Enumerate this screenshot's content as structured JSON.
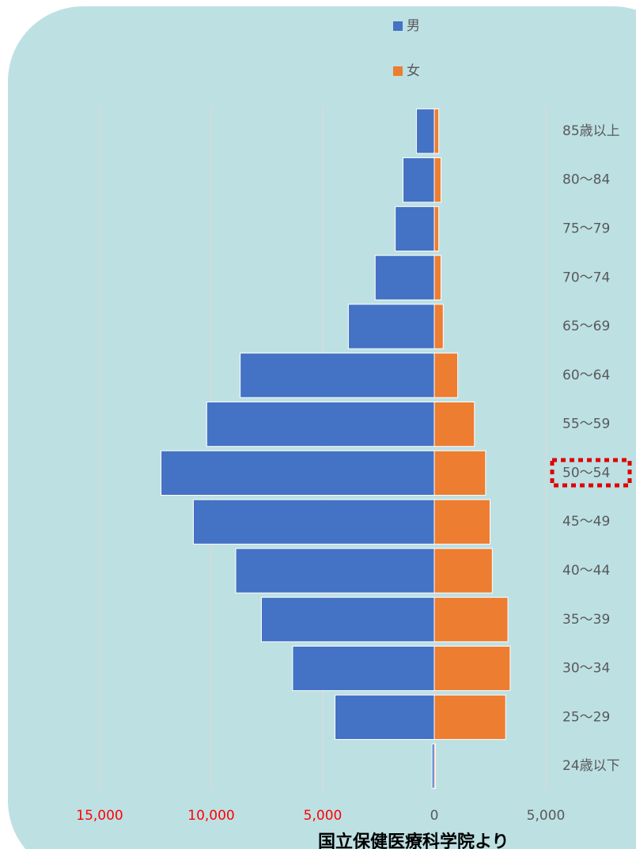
{
  "chart_data": {
    "type": "pyramid",
    "categories": [
      "85歳以上",
      "80～84",
      "75～79",
      "70～74",
      "65～69",
      "60～64",
      "55～59",
      "50～54",
      "45～49",
      "40～44",
      "35～39",
      "30～34",
      "25～29",
      "24歳以下"
    ],
    "series": [
      {
        "name": "男",
        "color": "#4472c4",
        "values": [
          -800,
          -1400,
          -1750,
          -2650,
          -3850,
          -8700,
          -10200,
          -12250,
          -10800,
          -8900,
          -7750,
          -6350,
          -4450,
          -100
        ]
      },
      {
        "name": "女",
        "color": "#ed7d31",
        "values": [
          200,
          300,
          200,
          300,
          400,
          1050,
          1800,
          2300,
          2500,
          2600,
          3300,
          3400,
          3200,
          50
        ]
      }
    ],
    "xlim": [
      -15000,
      5000
    ],
    "xticks": [
      {
        "value": -15000,
        "label": "15,000"
      },
      {
        "value": -10000,
        "label": "10,000"
      },
      {
        "value": -5000,
        "label": "5,000"
      },
      0,
      {
        "value": 5000,
        "label": "5,000"
      }
    ],
    "negative_tick_color": "#ff0000",
    "grid": true,
    "legend": "top",
    "source": "国立保健医療科学院より"
  }
}
